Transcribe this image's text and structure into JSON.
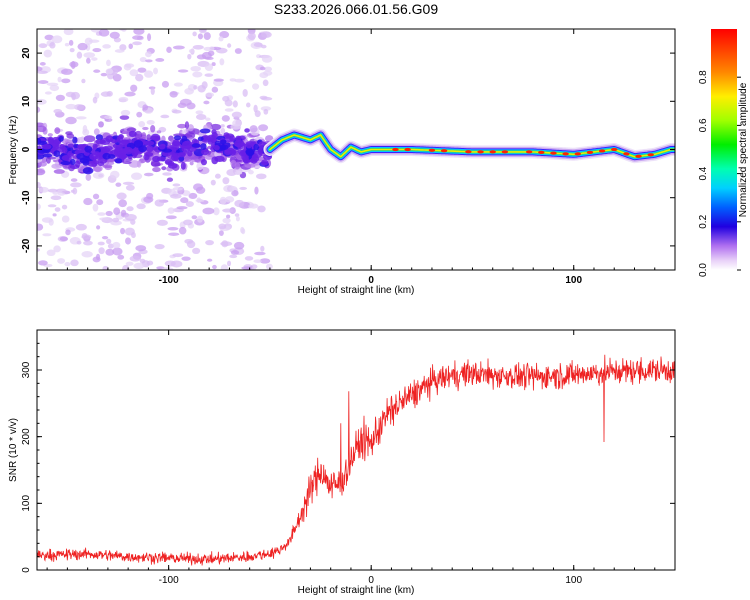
{
  "title": "S233.2026.066.01.56.G09",
  "colors": {
    "snr_line": "#ee2222",
    "spectro_background": "#ffffff",
    "ridge_color": "#22cc88"
  },
  "chart_data": [
    {
      "type": "heatmap",
      "name": "spectrogram",
      "xlabel": "Height of straight line (km)",
      "ylabel": "Frequency (Hz)",
      "xlim": [
        -165,
        150
      ],
      "ylim": [
        -25,
        25
      ],
      "xticks": [
        -100,
        0,
        100
      ],
      "xtick_labels": [
        "-100",
        "0",
        "100"
      ],
      "yticks": [
        -20,
        -10,
        0,
        10,
        20
      ],
      "ytick_labels": [
        "-20",
        "-10",
        "0",
        "10",
        "20"
      ],
      "noise_region_xlim": [
        -165,
        -50
      ],
      "ridge": [
        {
          "x": -160,
          "y": 0.5
        },
        {
          "x": -140,
          "y": -1.5
        },
        {
          "x": -120,
          "y": 1
        },
        {
          "x": -100,
          "y": -1
        },
        {
          "x": -80,
          "y": 1.5
        },
        {
          "x": -60,
          "y": -0.5
        },
        {
          "x": -50,
          "y": 0
        },
        {
          "x": -44,
          "y": 2
        },
        {
          "x": -38,
          "y": 3
        },
        {
          "x": -30,
          "y": 2
        },
        {
          "x": -25,
          "y": 3
        },
        {
          "x": -20,
          "y": 0
        },
        {
          "x": -15,
          "y": -1.5
        },
        {
          "x": -10,
          "y": 0.5
        },
        {
          "x": -5,
          "y": -0.5
        },
        {
          "x": 0,
          "y": 0
        },
        {
          "x": 20,
          "y": 0
        },
        {
          "x": 50,
          "y": -0.5
        },
        {
          "x": 80,
          "y": -0.5
        },
        {
          "x": 100,
          "y": -1
        },
        {
          "x": 120,
          "y": 0
        },
        {
          "x": 130,
          "y": -1.5
        },
        {
          "x": 140,
          "y": -1
        },
        {
          "x": 148,
          "y": 0
        }
      ],
      "colorbar": {
        "label": "Normalized spectral amplitude",
        "range": [
          0,
          1
        ],
        "ticks": [
          0.0,
          0.2,
          0.4,
          0.6,
          0.8
        ],
        "tick_labels": [
          "0.0",
          "0.2",
          "0.4",
          "0.6",
          "0.8"
        ]
      }
    },
    {
      "type": "line",
      "name": "snr",
      "xlabel": "Height of straight line (km)",
      "ylabel": "SNR (10 * v/v)",
      "xlim": [
        -165,
        150
      ],
      "ylim": [
        0,
        360
      ],
      "xticks": [
        -100,
        0,
        100
      ],
      "xtick_labels": [
        "-100",
        "0",
        "100"
      ],
      "yticks": [
        0,
        100,
        200,
        300
      ],
      "ytick_labels": [
        "0",
        "100",
        "200",
        "300"
      ],
      "trend": [
        {
          "x": -165,
          "y": 22
        },
        {
          "x": -140,
          "y": 24
        },
        {
          "x": -120,
          "y": 20
        },
        {
          "x": -100,
          "y": 18
        },
        {
          "x": -80,
          "y": 16
        },
        {
          "x": -60,
          "y": 20
        },
        {
          "x": -50,
          "y": 25
        },
        {
          "x": -45,
          "y": 30
        },
        {
          "x": -40,
          "y": 45
        },
        {
          "x": -35,
          "y": 80
        },
        {
          "x": -30,
          "y": 120
        },
        {
          "x": -25,
          "y": 150
        },
        {
          "x": -20,
          "y": 125
        },
        {
          "x": -15,
          "y": 130
        },
        {
          "x": -10,
          "y": 165
        },
        {
          "x": -5,
          "y": 195
        },
        {
          "x": 0,
          "y": 190
        },
        {
          "x": 5,
          "y": 220
        },
        {
          "x": 10,
          "y": 240
        },
        {
          "x": 20,
          "y": 262
        },
        {
          "x": 30,
          "y": 282
        },
        {
          "x": 40,
          "y": 292
        },
        {
          "x": 50,
          "y": 295
        },
        {
          "x": 60,
          "y": 292
        },
        {
          "x": 80,
          "y": 290
        },
        {
          "x": 100,
          "y": 293
        },
        {
          "x": 120,
          "y": 298
        },
        {
          "x": 150,
          "y": 300
        }
      ],
      "noise_amplitude": [
        {
          "x": -165,
          "y": 12
        },
        {
          "x": -40,
          "y": 12
        },
        {
          "x": -30,
          "y": 35
        },
        {
          "x": 0,
          "y": 40
        },
        {
          "x": 30,
          "y": 28
        },
        {
          "x": 150,
          "y": 28
        }
      ],
      "spikes": [
        {
          "x": -11,
          "y": 268
        },
        {
          "x": -15,
          "y": 220
        },
        {
          "x": 115,
          "y": 192
        }
      ]
    }
  ]
}
